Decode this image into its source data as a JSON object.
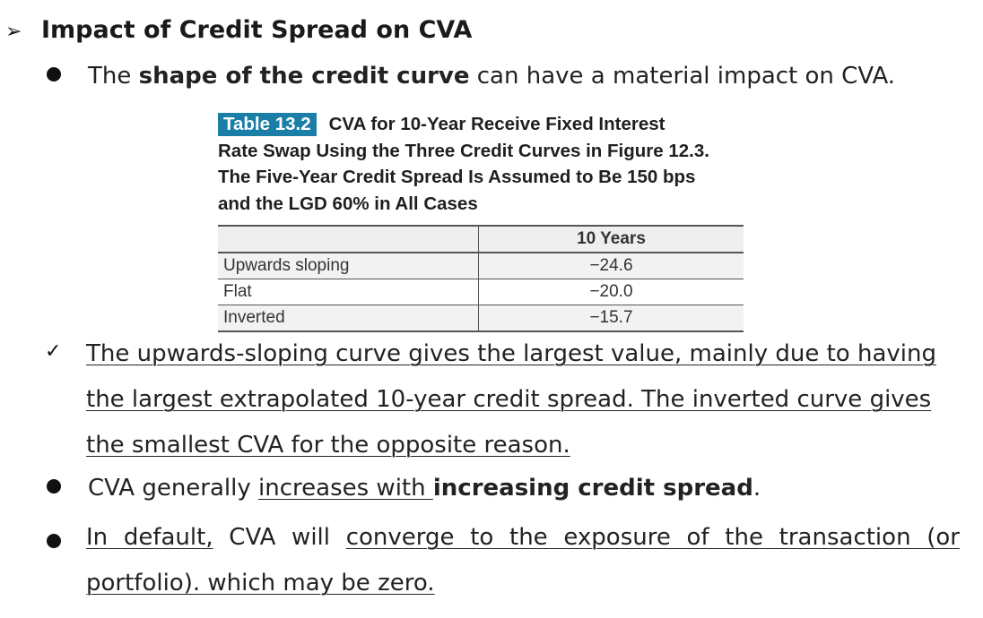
{
  "heading": {
    "arrow": "➢",
    "text": "Impact of Credit Spread on CVA"
  },
  "bullet1": {
    "pre": "The ",
    "bold": "shape of the credit curve",
    "post": " can have a material impact on CVA."
  },
  "table": {
    "label": "Table 13.2",
    "caption_line1": "CVA for 10-Year Receive Fixed Interest",
    "caption_line2": "Rate Swap Using the Three Credit Curves in Figure 12.3.",
    "caption_line3": "The Five-Year Credit Spread Is Assumed to Be 150 bps",
    "caption_line4": "and the LGD 60% in All Cases",
    "column_header": "10 Years",
    "rows": [
      {
        "name": "Upwards sloping",
        "value": "−24.6"
      },
      {
        "name": "Flat",
        "value": "−20.0"
      },
      {
        "name": "Inverted",
        "value": "−15.7"
      }
    ]
  },
  "check_point": {
    "mark": "✓",
    "line1": "The upwards-sloping curve gives the largest value, mainly due to having",
    "line2": "the largest extrapolated 10-year credit spread. The inverted curve gives",
    "line3": "the smallest CVA for the opposite reason."
  },
  "bullet2": {
    "pre": "CVA generally ",
    "underlined": "increases with ",
    "bold": "increasing credit spread",
    "post": "."
  },
  "bullet3": {
    "u1": "In default,",
    "mid": " CVA will ",
    "u2": "converge to the exposure of the transaction (or",
    "line2": "portfolio). which may be zero."
  }
}
